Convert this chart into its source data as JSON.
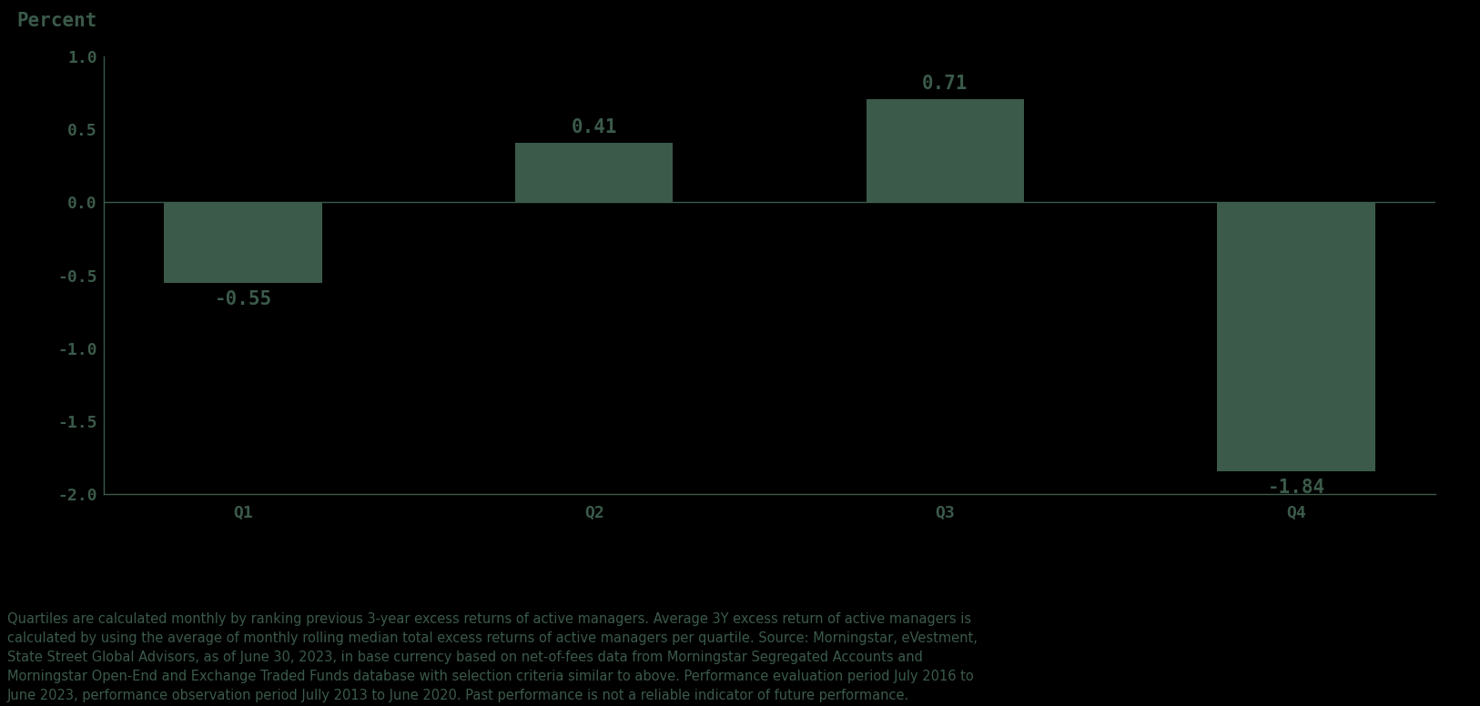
{
  "categories": [
    "Q1",
    "Q2",
    "Q3",
    "Q4"
  ],
  "values": [
    -0.55,
    0.41,
    0.71,
    -1.84
  ],
  "bar_color": "#3b5a4a",
  "background_color": "#000000",
  "text_color": "#3b5a4a",
  "ylabel": "Percent",
  "ylim": [
    -2.0,
    1.0
  ],
  "yticks": [
    -2.0,
    -1.5,
    -1.0,
    -0.5,
    0.0,
    0.5,
    1.0
  ],
  "bar_width": 0.45,
  "label_fontsize": 15,
  "tick_fontsize": 13,
  "footnote_fontsize": 10.5,
  "footnote": "Quartiles are calculated monthly by ranking previous 3-year excess returns of active managers. Average 3Y excess return of active managers is\ncalculated by using the average of monthly rolling median total excess returns of active managers per quartile. Source: Morningstar, eVestment,\nState Street Global Advisors, as of June 30, 2023, in base currency based on net-of-fees data from Morningstar Segregated Accounts and\nMorningstar Open-End and Exchange Traded Funds database with selection criteria similar to above. Performance evaluation period July 2016 to\nJune 2023, performance observation period Jully 2013 to June 2020. Past performance is not a reliable indicator of future performance."
}
